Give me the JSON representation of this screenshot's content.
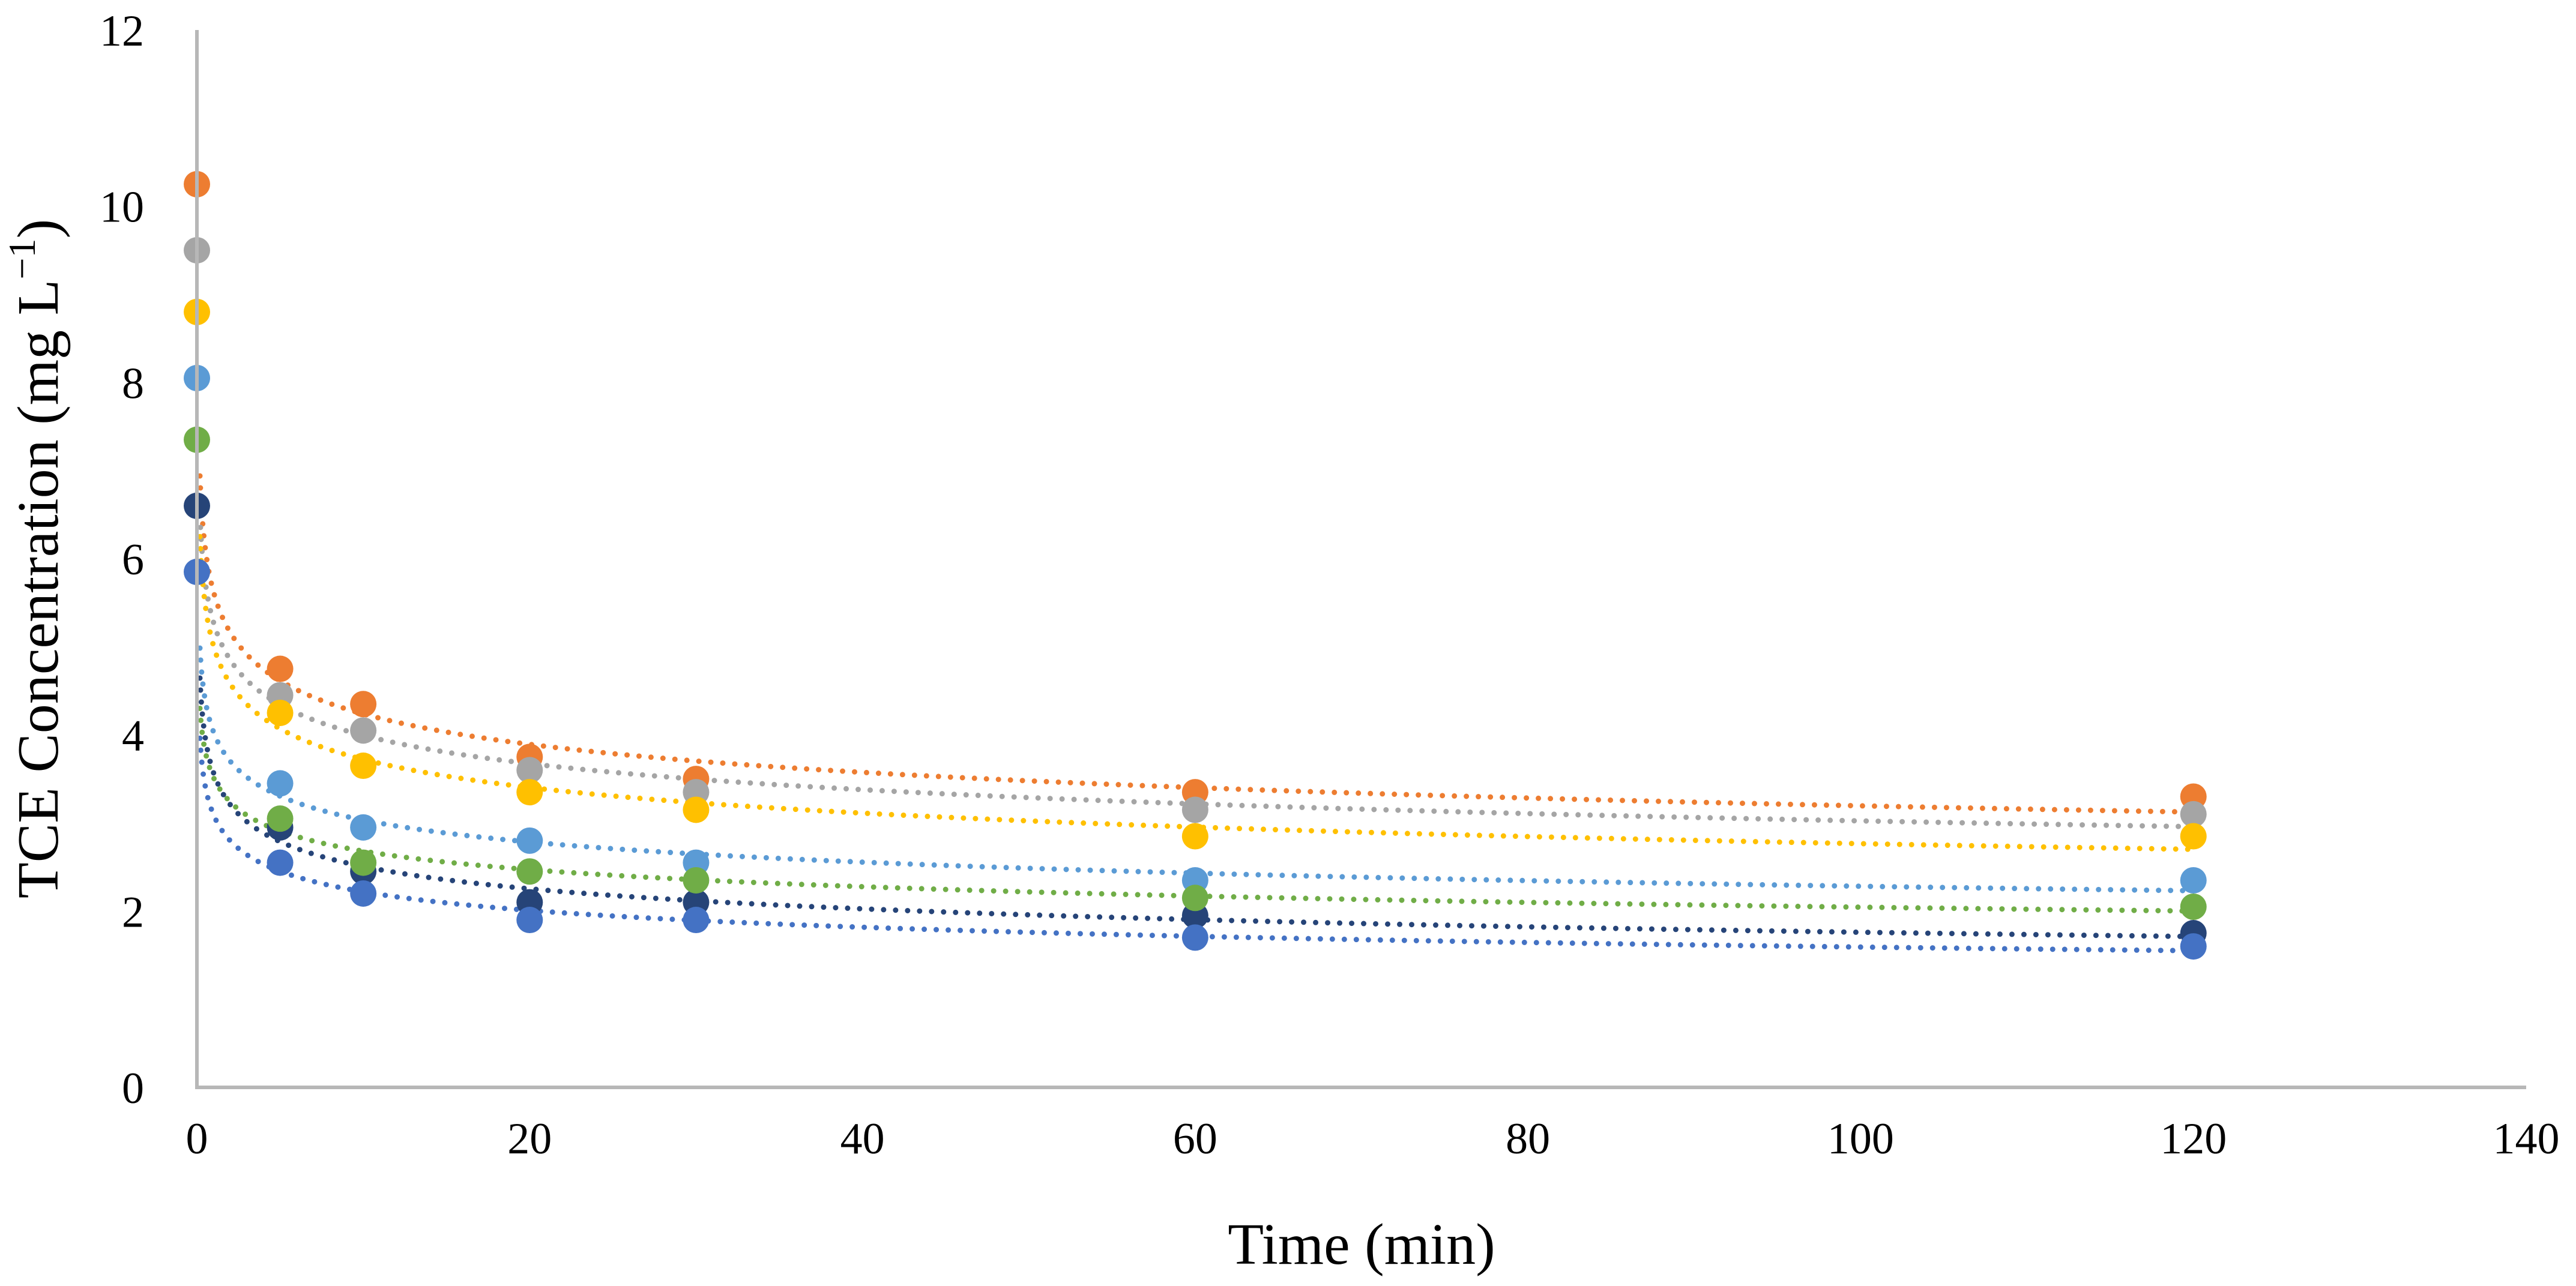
{
  "chart_data": {
    "type": "scatter",
    "title": "",
    "xlabel": "Time (min)",
    "ylabel_main": "TCE Concentration (mg L",
    "ylabel_sup": "−1",
    "ylabel_close": ")",
    "xlim": [
      0,
      140
    ],
    "ylim": [
      0,
      12
    ],
    "x_ticks": [
      0,
      20,
      40,
      60,
      80,
      100,
      120,
      140
    ],
    "y_ticks": [
      0,
      2,
      4,
      6,
      8,
      10,
      12
    ],
    "grid": false,
    "legend": "none",
    "trendline": "power",
    "series": [
      {
        "name": "series-1-dark-navy",
        "color": "#264478",
        "x": [
          0,
          5,
          10,
          20,
          30,
          60,
          120
        ],
        "y": [
          6.6,
          2.95,
          2.45,
          2.1,
          2.1,
          1.95,
          1.75
        ]
      },
      {
        "name": "series-2-orange",
        "color": "#ED7D31",
        "x": [
          0,
          5,
          10,
          20,
          30,
          60,
          120
        ],
        "y": [
          10.25,
          4.75,
          4.35,
          3.75,
          3.5,
          3.35,
          3.3
        ]
      },
      {
        "name": "series-3-gray",
        "color": "#A5A5A5",
        "x": [
          0,
          5,
          10,
          20,
          30,
          60,
          120
        ],
        "y": [
          9.5,
          4.45,
          4.05,
          3.6,
          3.35,
          3.15,
          3.1
        ]
      },
      {
        "name": "series-4-yellow",
        "color": "#FFC000",
        "x": [
          0,
          5,
          10,
          20,
          30,
          60,
          120
        ],
        "y": [
          8.8,
          4.25,
          3.65,
          3.35,
          3.15,
          2.85,
          2.85
        ]
      },
      {
        "name": "series-5-light-blue",
        "color": "#5B9BD5",
        "x": [
          0,
          5,
          10,
          20,
          30,
          60,
          120
        ],
        "y": [
          8.05,
          3.45,
          2.95,
          2.8,
          2.55,
          2.35,
          2.35
        ]
      },
      {
        "name": "series-6-green",
        "color": "#70AD47",
        "x": [
          0,
          5,
          10,
          20,
          30,
          60,
          120
        ],
        "y": [
          7.35,
          3.05,
          2.55,
          2.45,
          2.35,
          2.15,
          2.05
        ]
      },
      {
        "name": "series-7-blue",
        "color": "#4472C4",
        "x": [
          0,
          5,
          10,
          20,
          30,
          60,
          120
        ],
        "y": [
          5.85,
          2.55,
          2.2,
          1.9,
          1.9,
          1.7,
          1.6
        ]
      }
    ]
  }
}
